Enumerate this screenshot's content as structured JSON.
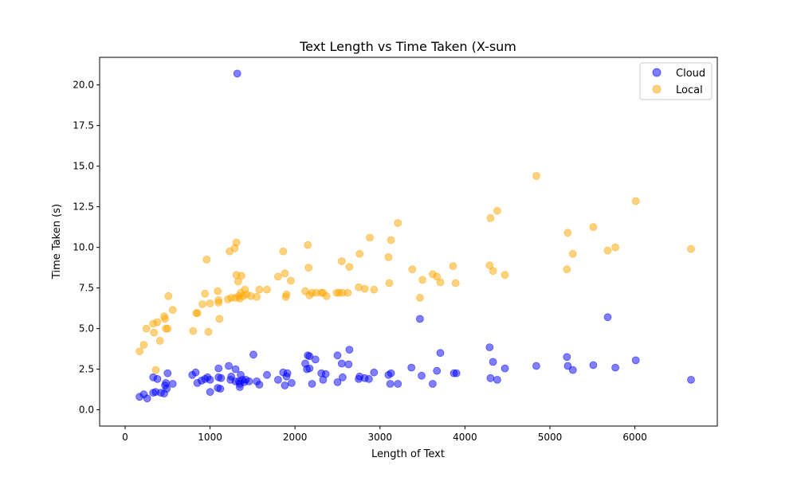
{
  "chart_data": {
    "type": "scatter",
    "title": "Text Length vs Time Taken (X-sum",
    "xlabel": "Length of Text",
    "ylabel": "Time Taken (s)",
    "xlim": [
      -300,
      6970
    ],
    "ylim": [
      -1.0,
      21.7
    ],
    "xticks": [
      0,
      1000,
      2000,
      3000,
      4000,
      5000,
      6000
    ],
    "xtick_labels": [
      "0",
      "1000",
      "2000",
      "3000",
      "4000",
      "5000",
      "6000"
    ],
    "yticks": [
      0,
      2.5,
      5,
      7.5,
      10,
      12.5,
      15,
      17.5,
      20
    ],
    "ytick_labels": [
      "0.0",
      "2.5",
      "5.0",
      "7.5",
      "10.0",
      "12.5",
      "15.0",
      "17.5",
      "20.0"
    ],
    "grid": false,
    "legend_position": "top-right",
    "series": [
      {
        "name": "Cloud",
        "color": "#0000ff",
        "points": [
          [
            170,
            0.8
          ],
          [
            220,
            0.95
          ],
          [
            260,
            0.7
          ],
          [
            330,
            1.05
          ],
          [
            330,
            2.0
          ],
          [
            360,
            1.1
          ],
          [
            380,
            1.9
          ],
          [
            420,
            1.05
          ],
          [
            460,
            1.0
          ],
          [
            470,
            1.5
          ],
          [
            480,
            1.65
          ],
          [
            490,
            1.3
          ],
          [
            500,
            2.25
          ],
          [
            560,
            1.6
          ],
          [
            790,
            2.15
          ],
          [
            830,
            2.3
          ],
          [
            850,
            1.65
          ],
          [
            900,
            1.8
          ],
          [
            940,
            1.9
          ],
          [
            970,
            2.0
          ],
          [
            1000,
            1.1
          ],
          [
            1000,
            1.85
          ],
          [
            1090,
            1.35
          ],
          [
            1100,
            2.0
          ],
          [
            1100,
            2.55
          ],
          [
            1120,
            1.3
          ],
          [
            1130,
            1.95
          ],
          [
            1220,
            2.7
          ],
          [
            1240,
            1.85
          ],
          [
            1250,
            2.05
          ],
          [
            1300,
            1.75
          ],
          [
            1300,
            2.5
          ],
          [
            1320,
            20.7
          ],
          [
            1340,
            1.75
          ],
          [
            1350,
            1.4
          ],
          [
            1350,
            1.6
          ],
          [
            1360,
            2.15
          ],
          [
            1380,
            1.85
          ],
          [
            1400,
            1.7
          ],
          [
            1420,
            1.85
          ],
          [
            1460,
            1.75
          ],
          [
            1510,
            3.4
          ],
          [
            1550,
            1.75
          ],
          [
            1580,
            1.55
          ],
          [
            1670,
            2.15
          ],
          [
            1800,
            1.85
          ],
          [
            1860,
            2.3
          ],
          [
            1880,
            1.5
          ],
          [
            1900,
            2.05
          ],
          [
            1910,
            2.25
          ],
          [
            1960,
            1.65
          ],
          [
            2120,
            2.85
          ],
          [
            2140,
            2.5
          ],
          [
            2150,
            3.35
          ],
          [
            2170,
            2.55
          ],
          [
            2170,
            3.3
          ],
          [
            2200,
            1.6
          ],
          [
            2240,
            3.1
          ],
          [
            2310,
            2.25
          ],
          [
            2330,
            1.85
          ],
          [
            2360,
            2.2
          ],
          [
            2500,
            3.35
          ],
          [
            2500,
            1.7
          ],
          [
            2550,
            2.85
          ],
          [
            2560,
            2.0
          ],
          [
            2630,
            2.8
          ],
          [
            2640,
            3.7
          ],
          [
            2750,
            1.9
          ],
          [
            2760,
            2.05
          ],
          [
            2820,
            1.95
          ],
          [
            2870,
            1.9
          ],
          [
            2930,
            2.3
          ],
          [
            3100,
            2.15
          ],
          [
            3120,
            1.6
          ],
          [
            3130,
            2.25
          ],
          [
            3210,
            1.6
          ],
          [
            3370,
            2.6
          ],
          [
            3470,
            5.6
          ],
          [
            3490,
            2.1
          ],
          [
            3620,
            1.6
          ],
          [
            3670,
            2.4
          ],
          [
            3710,
            3.5
          ],
          [
            3870,
            2.25
          ],
          [
            3900,
            2.25
          ],
          [
            4290,
            3.85
          ],
          [
            4300,
            1.95
          ],
          [
            4330,
            2.95
          ],
          [
            4380,
            1.85
          ],
          [
            4470,
            2.55
          ],
          [
            4840,
            2.7
          ],
          [
            5200,
            3.25
          ],
          [
            5210,
            2.7
          ],
          [
            5270,
            2.45
          ],
          [
            5510,
            2.75
          ],
          [
            5680,
            5.7
          ],
          [
            5770,
            2.6
          ],
          [
            6010,
            3.05
          ],
          [
            6660,
            1.85
          ]
        ]
      },
      {
        "name": "Local",
        "color": "#ffa500",
        "points": [
          [
            170,
            3.6
          ],
          [
            220,
            4.0
          ],
          [
            250,
            5.0
          ],
          [
            330,
            5.3
          ],
          [
            340,
            4.75
          ],
          [
            360,
            2.45
          ],
          [
            380,
            5.4
          ],
          [
            410,
            4.25
          ],
          [
            460,
            5.75
          ],
          [
            470,
            5.6
          ],
          [
            480,
            5.0
          ],
          [
            500,
            5.0
          ],
          [
            510,
            7.0
          ],
          [
            560,
            6.15
          ],
          [
            800,
            4.85
          ],
          [
            840,
            5.95
          ],
          [
            850,
            5.95
          ],
          [
            910,
            6.5
          ],
          [
            940,
            7.15
          ],
          [
            960,
            9.25
          ],
          [
            980,
            4.8
          ],
          [
            1000,
            6.55
          ],
          [
            1090,
            7.3
          ],
          [
            1100,
            6.6
          ],
          [
            1100,
            6.75
          ],
          [
            1110,
            5.6
          ],
          [
            1210,
            6.8
          ],
          [
            1230,
            9.75
          ],
          [
            1250,
            6.9
          ],
          [
            1290,
            9.95
          ],
          [
            1300,
            6.9
          ],
          [
            1310,
            10.3
          ],
          [
            1310,
            8.3
          ],
          [
            1330,
            7.9
          ],
          [
            1340,
            7.0
          ],
          [
            1350,
            6.85
          ],
          [
            1360,
            7.2
          ],
          [
            1370,
            8.25
          ],
          [
            1390,
            7.0
          ],
          [
            1410,
            7.4
          ],
          [
            1430,
            7.1
          ],
          [
            1480,
            7.0
          ],
          [
            1550,
            6.95
          ],
          [
            1580,
            7.4
          ],
          [
            1670,
            7.4
          ],
          [
            1800,
            8.2
          ],
          [
            1860,
            9.75
          ],
          [
            1880,
            8.4
          ],
          [
            1890,
            6.95
          ],
          [
            1900,
            7.1
          ],
          [
            1950,
            7.95
          ],
          [
            2120,
            7.3
          ],
          [
            2150,
            10.15
          ],
          [
            2160,
            8.75
          ],
          [
            2170,
            7.05
          ],
          [
            2200,
            7.2
          ],
          [
            2250,
            7.2
          ],
          [
            2310,
            7.2
          ],
          [
            2330,
            7.2
          ],
          [
            2370,
            7.0
          ],
          [
            2490,
            7.2
          ],
          [
            2520,
            7.2
          ],
          [
            2550,
            9.15
          ],
          [
            2560,
            7.2
          ],
          [
            2620,
            7.2
          ],
          [
            2640,
            8.8
          ],
          [
            2750,
            7.55
          ],
          [
            2760,
            9.6
          ],
          [
            2820,
            7.45
          ],
          [
            2880,
            10.6
          ],
          [
            2930,
            7.4
          ],
          [
            3100,
            9.4
          ],
          [
            3110,
            7.8
          ],
          [
            3130,
            10.45
          ],
          [
            3210,
            11.5
          ],
          [
            3380,
            8.65
          ],
          [
            3470,
            6.9
          ],
          [
            3500,
            8.0
          ],
          [
            3620,
            8.35
          ],
          [
            3670,
            8.2
          ],
          [
            3710,
            7.85
          ],
          [
            3860,
            8.85
          ],
          [
            3890,
            7.8
          ],
          [
            4290,
            8.9
          ],
          [
            4300,
            11.8
          ],
          [
            4330,
            8.55
          ],
          [
            4380,
            12.25
          ],
          [
            4470,
            8.3
          ],
          [
            4840,
            14.4
          ],
          [
            5200,
            8.65
          ],
          [
            5210,
            10.9
          ],
          [
            5270,
            9.6
          ],
          [
            5510,
            11.25
          ],
          [
            5680,
            9.8
          ],
          [
            5770,
            10.0
          ],
          [
            6010,
            12.85
          ],
          [
            6660,
            9.9
          ]
        ]
      }
    ]
  }
}
